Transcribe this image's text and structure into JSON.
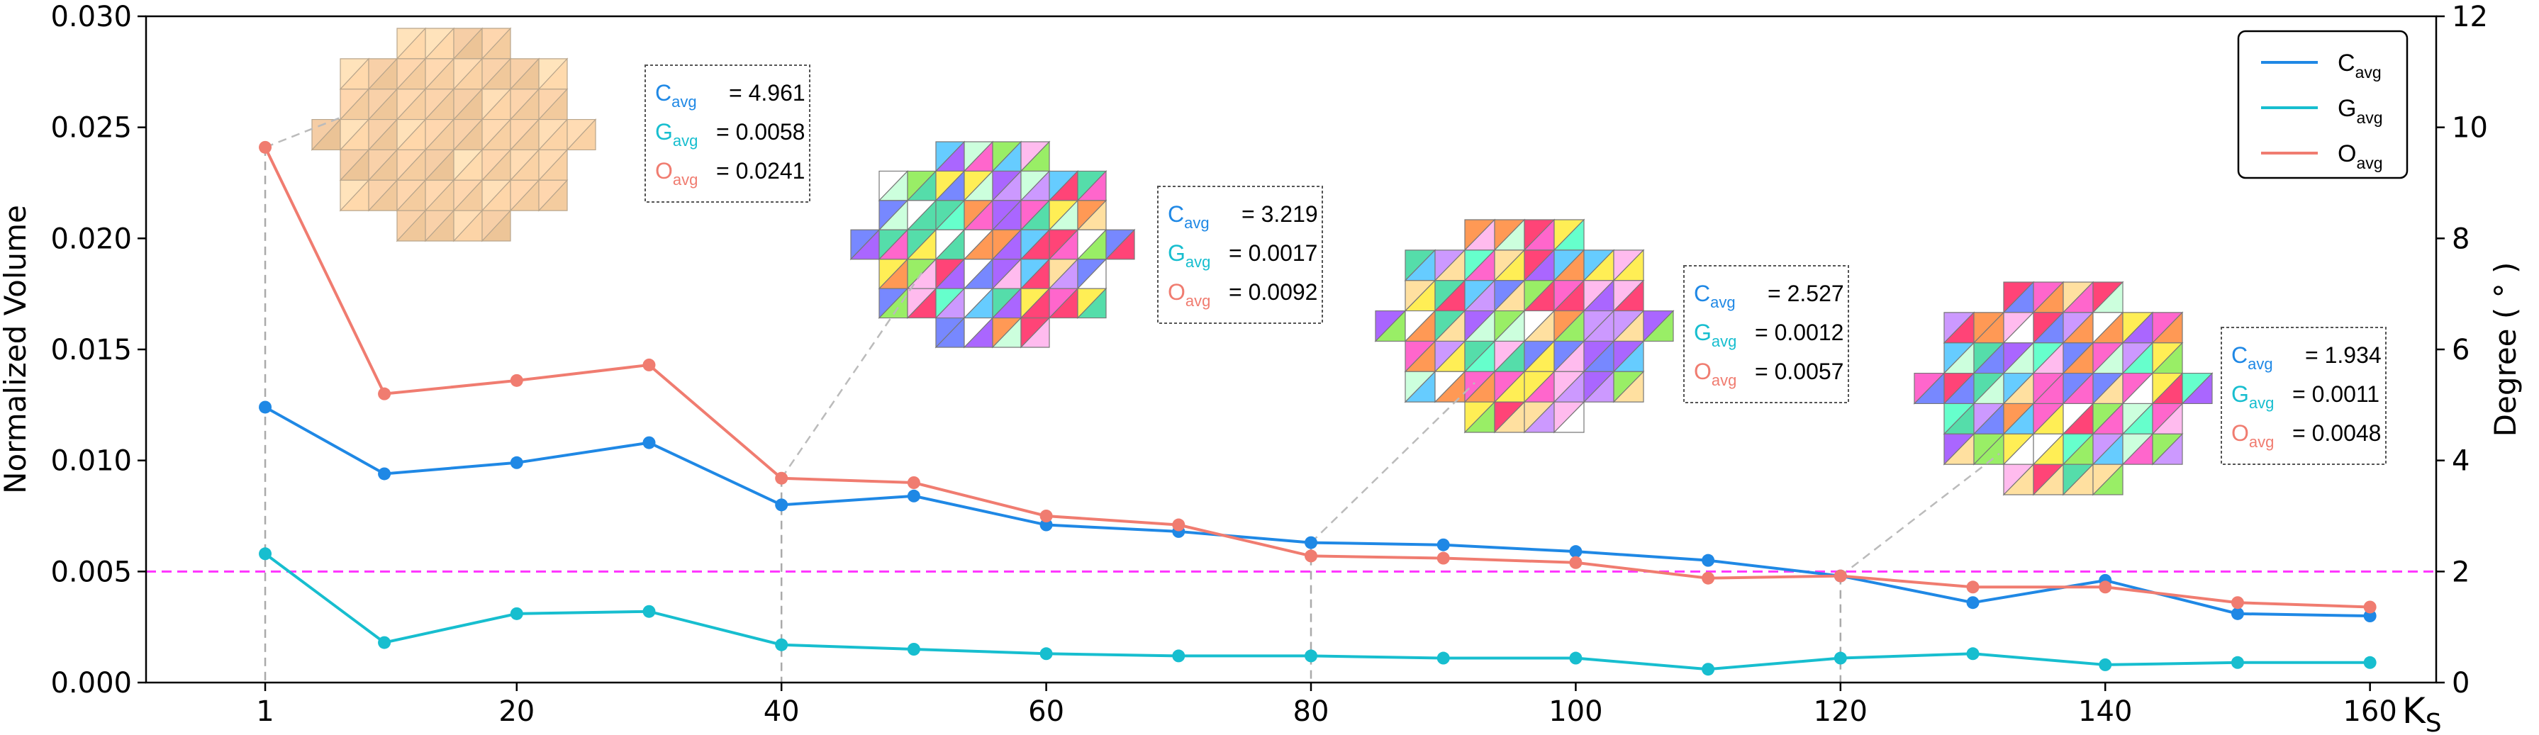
{
  "chart_data": {
    "type": "line",
    "x": [
      1,
      10,
      20,
      30,
      40,
      50,
      60,
      70,
      80,
      90,
      100,
      110,
      120,
      130,
      140,
      150,
      160
    ],
    "x_ticks": [
      1,
      20,
      40,
      60,
      80,
      100,
      120,
      140,
      160
    ],
    "xlim": [
      -8,
      165
    ],
    "xlabel": "K",
    "xlabel_sub": "S",
    "ylabel": "Normalized Volume",
    "ylim": [
      0,
      0.03
    ],
    "y_ticks": [
      "0.000",
      "0.005",
      "0.010",
      "0.015",
      "0.020",
      "0.025",
      "0.030"
    ],
    "y2label": "Degree ( ° )",
    "y2lim": [
      0,
      12
    ],
    "y2_ticks": [
      "0",
      "2",
      "4",
      "6",
      "8",
      "10",
      "12"
    ],
    "reference_line": {
      "y": 0.005,
      "color": "#ff33ff",
      "style": "dashed"
    },
    "series": [
      {
        "name": "C",
        "sub": "avg",
        "color": "#1f88e5",
        "values": [
          0.0124,
          0.0094,
          0.0099,
          0.0108,
          0.008,
          0.0084,
          0.0071,
          0.0068,
          0.0063,
          0.0062,
          0.0059,
          0.0055,
          0.0048,
          0.0036,
          0.0046,
          0.0031,
          0.003
        ]
      },
      {
        "name": "G",
        "sub": "avg",
        "color": "#17becf",
        "values": [
          0.0058,
          0.0018,
          0.0031,
          0.0032,
          0.0017,
          0.0015,
          0.0013,
          0.0012,
          0.0012,
          0.0011,
          0.0011,
          0.0006,
          0.0011,
          0.0013,
          0.0008,
          0.0009,
          0.0009
        ]
      },
      {
        "name": "O",
        "sub": "avg",
        "color": "#f07c70",
        "values": [
          0.0241,
          0.013,
          0.0136,
          0.0143,
          0.0092,
          0.009,
          0.0075,
          0.0071,
          0.0057,
          0.0056,
          0.0054,
          0.0047,
          0.0048,
          0.0043,
          0.0043,
          0.0036,
          0.0034
        ]
      }
    ],
    "legend_position": "top-right",
    "annotations": [
      {
        "at_x": 1,
        "values": [
          "4.961",
          "0.0058",
          "0.0241"
        ],
        "mesh": "plain"
      },
      {
        "at_x": 40,
        "values": [
          "3.219",
          "0.0017",
          "0.0092"
        ],
        "mesh": "colored"
      },
      {
        "at_x": 80,
        "values": [
          "2.527",
          "0.0012",
          "0.0057"
        ],
        "mesh": "colored"
      },
      {
        "at_x": 120,
        "values": [
          "1.934",
          "0.0011",
          "0.0048"
        ],
        "mesh": "colored"
      }
    ],
    "grid": false
  }
}
